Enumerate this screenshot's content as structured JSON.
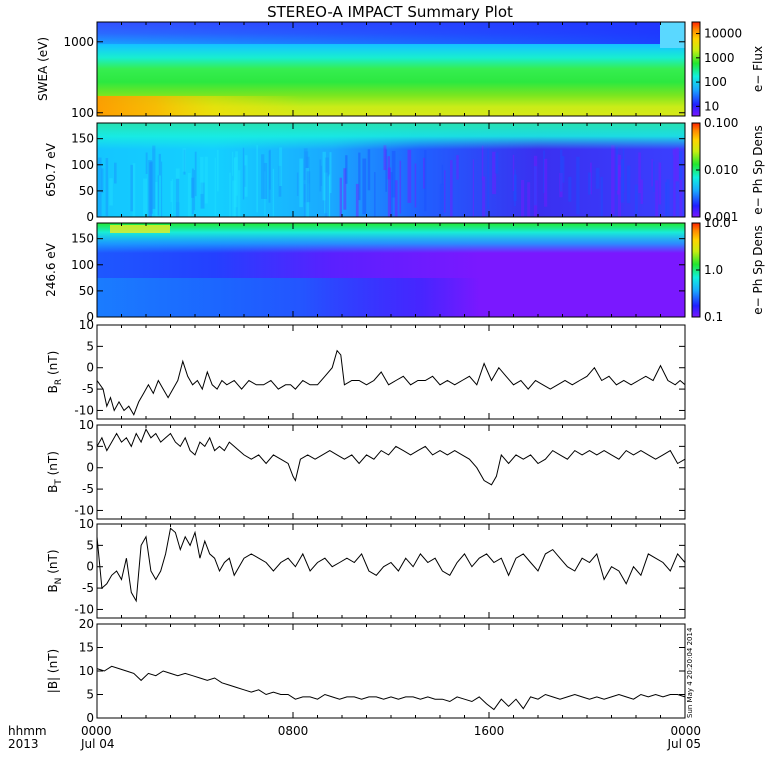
{
  "chart_data": {
    "title": "STEREO-A IMPACT Summary Plot",
    "xaxis": {
      "corner_top": "hhmm",
      "corner_bottom": "2013",
      "ticks": [
        {
          "hour": 0,
          "top": "0000",
          "bottom": "Jul 04"
        },
        {
          "hour": 8,
          "top": "0800",
          "bottom": ""
        },
        {
          "hour": 16,
          "top": "1600",
          "bottom": ""
        },
        {
          "hour": 24,
          "top": "0000",
          "bottom": "Jul 05"
        }
      ],
      "range_hours": [
        0,
        24
      ]
    },
    "panels": [
      {
        "id": "swea",
        "type": "heatmap",
        "ylabel": "SWEA (eV)",
        "scale": "log",
        "ylim": [
          90,
          1900
        ],
        "yticks": [
          "100",
          "1000"
        ],
        "ytick_values": [
          100,
          1000
        ],
        "colorbar_label": "e− Flux",
        "colorbar_ticks": [
          "10",
          "100",
          "1000",
          "10000"
        ],
        "colorbar_tick_values": [
          10,
          100,
          1000,
          10000
        ],
        "colorbar_range": [
          4,
          30000
        ]
      },
      {
        "id": "pad650",
        "type": "heatmap",
        "ylabel": "650.7 eV",
        "scale": "linear",
        "ylim": [
          0,
          180
        ],
        "yticks": [
          "0",
          "50",
          "100",
          "150"
        ],
        "ytick_values": [
          0,
          50,
          100,
          150
        ],
        "colorbar_label": "e− Ph Sp Dens",
        "colorbar_ticks": [
          "0.001",
          "0.010",
          "0.100"
        ],
        "colorbar_tick_values": [
          0.001,
          0.01,
          0.1
        ],
        "colorbar_range": [
          0.001,
          0.1
        ]
      },
      {
        "id": "pad246",
        "type": "heatmap",
        "ylabel": "246.6 eV",
        "scale": "linear",
        "ylim": [
          0,
          180
        ],
        "yticks": [
          "0",
          "50",
          "100",
          "150"
        ],
        "ytick_values": [
          0,
          50,
          100,
          150
        ],
        "colorbar_label": "e− Ph Sp Dens",
        "colorbar_ticks": [
          "0.1",
          "1.0",
          "10.0"
        ],
        "colorbar_tick_values": [
          0.1,
          1,
          10
        ],
        "colorbar_range": [
          0.1,
          10
        ]
      },
      {
        "id": "br",
        "type": "line",
        "ylabel_main": "B",
        "ylabel_sub": "R",
        "ylabel_unit": " (nT)",
        "ylim": [
          -12,
          10
        ],
        "yticks": [
          "-10",
          "-5",
          "0",
          "5",
          "10"
        ],
        "ytick_values": [
          -10,
          -5,
          0,
          5,
          10
        ],
        "x": [
          0.0,
          0.25,
          0.4,
          0.55,
          0.7,
          0.9,
          1.1,
          1.3,
          1.5,
          1.7,
          1.9,
          2.1,
          2.3,
          2.5,
          2.7,
          2.9,
          3.1,
          3.3,
          3.5,
          3.7,
          3.9,
          4.1,
          4.3,
          4.5,
          4.7,
          4.9,
          5.1,
          5.3,
          5.6,
          5.9,
          6.2,
          6.5,
          6.8,
          7.1,
          7.4,
          7.7,
          7.9,
          8.1,
          8.4,
          8.7,
          9.0,
          9.3,
          9.6,
          9.8,
          9.95,
          10.1,
          10.4,
          10.7,
          11.0,
          11.3,
          11.6,
          11.9,
          12.2,
          12.5,
          12.8,
          13.1,
          13.4,
          13.7,
          14.0,
          14.3,
          14.6,
          14.9,
          15.2,
          15.5,
          15.8,
          16.1,
          16.4,
          16.7,
          17.0,
          17.3,
          17.6,
          17.9,
          18.2,
          18.5,
          18.8,
          19.1,
          19.4,
          19.7,
          20.0,
          20.3,
          20.6,
          20.9,
          21.2,
          21.5,
          21.8,
          22.1,
          22.4,
          22.7,
          23.0,
          23.3,
          23.6,
          23.8,
          24.0
        ],
        "y": [
          -3,
          -5,
          -9,
          -7,
          -10,
          -8,
          -10,
          -9,
          -11,
          -8,
          -6,
          -4,
          -6,
          -3,
          -5,
          -7,
          -5,
          -3,
          1.5,
          -2,
          -4,
          -3,
          -5,
          -1,
          -4,
          -5,
          -3,
          -4,
          -3,
          -5,
          -3,
          -4,
          -4,
          -3,
          -5,
          -4,
          -4,
          -5,
          -3,
          -4,
          -4,
          -2,
          0,
          4,
          3,
          -4,
          -3,
          -3,
          -4,
          -3,
          -1,
          -4,
          -3,
          -2,
          -4,
          -3,
          -3,
          -2,
          -4,
          -3,
          -4,
          -3,
          -2,
          -4,
          1,
          -3,
          0,
          -2,
          -4,
          -3,
          -5,
          -3,
          -4,
          -5,
          -4,
          -3,
          -4,
          -3,
          -2,
          0,
          -3,
          -2,
          -4,
          -3,
          -4,
          -3,
          -2,
          -3,
          0.5,
          -3,
          -4,
          -3,
          -4
        ]
      },
      {
        "id": "bt",
        "type": "line",
        "ylabel_main": "B",
        "ylabel_sub": "T",
        "ylabel_unit": " (nT)",
        "ylim": [
          -12,
          10
        ],
        "yticks": [
          "-10",
          "-5",
          "0",
          "5",
          "10"
        ],
        "ytick_values": [
          -10,
          -5,
          0,
          5,
          10
        ],
        "x": [
          0.0,
          0.2,
          0.4,
          0.6,
          0.8,
          1.0,
          1.2,
          1.4,
          1.6,
          1.8,
          2.0,
          2.2,
          2.4,
          2.6,
          2.8,
          3.0,
          3.2,
          3.4,
          3.6,
          3.8,
          4.0,
          4.2,
          4.4,
          4.6,
          4.8,
          5.0,
          5.2,
          5.4,
          5.6,
          5.8,
          6.0,
          6.3,
          6.6,
          6.9,
          7.2,
          7.5,
          7.8,
          8.0,
          8.1,
          8.3,
          8.6,
          8.9,
          9.2,
          9.5,
          9.8,
          10.1,
          10.4,
          10.7,
          11.0,
          11.3,
          11.6,
          11.9,
          12.2,
          12.5,
          12.8,
          13.1,
          13.4,
          13.7,
          14.0,
          14.3,
          14.6,
          14.9,
          15.2,
          15.5,
          15.8,
          16.1,
          16.3,
          16.5,
          16.8,
          17.1,
          17.4,
          17.7,
          18.0,
          18.3,
          18.6,
          18.9,
          19.2,
          19.5,
          19.8,
          20.1,
          20.4,
          20.7,
          21.0,
          21.3,
          21.6,
          21.9,
          22.2,
          22.5,
          22.8,
          23.1,
          23.4,
          23.7,
          24.0
        ],
        "y": [
          5,
          7,
          4,
          6,
          8,
          6,
          7,
          5,
          8,
          6,
          9,
          7,
          8,
          6,
          7,
          8,
          6,
          5,
          7,
          4,
          3,
          6,
          5,
          7,
          4,
          5,
          4,
          6,
          5,
          4,
          3,
          2,
          3,
          1,
          3,
          2,
          1,
          -2,
          -3,
          2,
          3,
          2,
          3,
          4,
          3,
          2,
          3,
          1,
          3,
          2,
          4,
          3,
          5,
          4,
          3,
          4,
          5,
          3,
          4,
          3,
          4,
          3,
          2,
          0,
          -3,
          -4,
          -2,
          3,
          1,
          3,
          2,
          3,
          1,
          2,
          4,
          3,
          2,
          4,
          3,
          4,
          3,
          4,
          3,
          2,
          4,
          3,
          4,
          3,
          2,
          3,
          4,
          1,
          2
        ]
      },
      {
        "id": "bn",
        "type": "line",
        "ylabel_main": "B",
        "ylabel_sub": "N",
        "ylabel_unit": " (nT)",
        "ylim": [
          -12,
          10
        ],
        "yticks": [
          "-10",
          "-5",
          "0",
          "5",
          "10"
        ],
        "ytick_values": [
          -10,
          -5,
          0,
          5,
          10
        ],
        "x": [
          0.0,
          0.2,
          0.4,
          0.6,
          0.8,
          1.0,
          1.2,
          1.4,
          1.6,
          1.8,
          2.0,
          2.2,
          2.4,
          2.6,
          2.8,
          3.0,
          3.2,
          3.4,
          3.6,
          3.8,
          4.0,
          4.2,
          4.4,
          4.6,
          4.8,
          5.0,
          5.2,
          5.4,
          5.6,
          5.8,
          6.0,
          6.3,
          6.6,
          6.9,
          7.2,
          7.5,
          7.8,
          8.1,
          8.4,
          8.7,
          9.0,
          9.3,
          9.6,
          9.9,
          10.2,
          10.5,
          10.8,
          11.1,
          11.4,
          11.7,
          12.0,
          12.3,
          12.6,
          12.9,
          13.2,
          13.5,
          13.8,
          14.1,
          14.4,
          14.7,
          15.0,
          15.3,
          15.6,
          15.9,
          16.2,
          16.5,
          16.8,
          17.1,
          17.4,
          17.7,
          18.0,
          18.3,
          18.6,
          18.9,
          19.2,
          19.5,
          19.8,
          20.1,
          20.4,
          20.7,
          21.0,
          21.3,
          21.6,
          21.9,
          22.2,
          22.5,
          22.8,
          23.1,
          23.4,
          23.7,
          24.0
        ],
        "y": [
          7,
          -5,
          -4,
          -2,
          -1,
          -3,
          2,
          -6,
          -8,
          5,
          7,
          -1,
          -3,
          -1,
          3,
          9,
          8,
          4,
          7,
          5,
          8,
          2,
          6,
          3,
          2,
          -1,
          1,
          2,
          -2,
          0,
          2,
          3,
          2,
          1,
          -1,
          1,
          2,
          0,
          3,
          -1,
          1,
          2,
          0,
          1,
          2,
          1,
          3,
          -1,
          -2,
          0,
          1,
          -1,
          2,
          0,
          3,
          1,
          2,
          -1,
          -2,
          1,
          3,
          0,
          2,
          3,
          1,
          2,
          -2,
          2,
          3,
          1,
          -1,
          3,
          4,
          2,
          0,
          -1,
          2,
          1,
          3,
          -3,
          0,
          -1,
          -4,
          0,
          -2,
          3,
          2,
          1,
          -1,
          3,
          1
        ]
      },
      {
        "id": "bmag",
        "type": "line",
        "ylabel_main": "|B|",
        "ylabel_sub": "",
        "ylabel_unit": " (nT)",
        "ylim": [
          0,
          20
        ],
        "yticks": [
          "0",
          "5",
          "10",
          "15",
          "20"
        ],
        "ytick_values": [
          0,
          5,
          10,
          15,
          20
        ],
        "x": [
          0.0,
          0.3,
          0.6,
          0.9,
          1.2,
          1.5,
          1.8,
          2.1,
          2.4,
          2.7,
          3.0,
          3.3,
          3.6,
          3.9,
          4.2,
          4.5,
          4.8,
          5.1,
          5.4,
          5.7,
          6.0,
          6.3,
          6.6,
          6.9,
          7.2,
          7.5,
          7.8,
          8.1,
          8.4,
          8.7,
          9.0,
          9.3,
          9.6,
          9.9,
          10.2,
          10.5,
          10.8,
          11.1,
          11.4,
          11.7,
          12.0,
          12.3,
          12.6,
          12.9,
          13.2,
          13.5,
          13.8,
          14.1,
          14.4,
          14.7,
          15.0,
          15.3,
          15.6,
          15.9,
          16.2,
          16.5,
          16.8,
          17.1,
          17.4,
          17.7,
          18.0,
          18.3,
          18.6,
          18.9,
          19.2,
          19.5,
          19.8,
          20.1,
          20.4,
          20.7,
          21.0,
          21.3,
          21.6,
          21.9,
          22.2,
          22.5,
          22.8,
          23.1,
          23.4,
          23.7,
          24.0
        ],
        "y": [
          10.5,
          10,
          11,
          10.5,
          10,
          9.5,
          8,
          9.5,
          9,
          10,
          9.5,
          9,
          9.5,
          9,
          8.5,
          8,
          8.5,
          7.5,
          7,
          6.5,
          6,
          5.5,
          6,
          5,
          5.5,
          5,
          5,
          4,
          4.5,
          4.5,
          4,
          5,
          4.5,
          4,
          4.5,
          4.5,
          4,
          4.5,
          4.5,
          4,
          4.5,
          4,
          4.5,
          4.5,
          4,
          4.5,
          4,
          4,
          3.5,
          4.5,
          4,
          3.5,
          4.5,
          3,
          1.8,
          4,
          2.5,
          4,
          2,
          4.5,
          4,
          5,
          4.5,
          4,
          4.5,
          5,
          4.5,
          4,
          4.5,
          4,
          4.5,
          5,
          4.5,
          4,
          5,
          4.5,
          5,
          4.5,
          5,
          5,
          4.5
        ]
      }
    ],
    "timestamp_vertical": "Sun May  4 20:20:04 2014"
  }
}
